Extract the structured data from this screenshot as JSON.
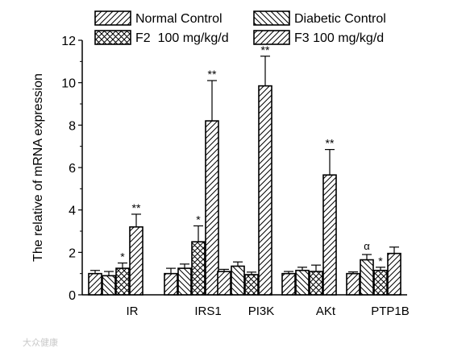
{
  "chart_data": {
    "type": "bar",
    "ylabel": "The relative of mRNA expression",
    "ylim": [
      0,
      12
    ],
    "yticks": [
      0,
      2,
      4,
      6,
      8,
      10,
      12
    ],
    "categories": [
      "IR",
      "IRS1",
      "PI3K",
      "AKt",
      "PTP1B"
    ],
    "legend_position": "top",
    "series": [
      {
        "name": "Normal Control",
        "pattern": "forward-hatch",
        "values": [
          1.0,
          1.0,
          1.1,
          1.0,
          1.0
        ],
        "errors": [
          0.15,
          0.25,
          0.1,
          0.1,
          0.08
        ],
        "annotations": [
          "",
          "",
          "",
          "",
          ""
        ]
      },
      {
        "name": "Diabetic Control",
        "pattern": "back-hatch",
        "values": [
          0.9,
          1.25,
          1.35,
          1.15,
          1.65
        ],
        "errors": [
          0.2,
          0.2,
          0.2,
          0.15,
          0.25
        ],
        "annotations": [
          "",
          "",
          "",
          "",
          "α"
        ]
      },
      {
        "name": "F2  100 mg/kg/d",
        "pattern": "cross-hatch",
        "values": [
          1.25,
          2.5,
          0.95,
          1.1,
          1.15
        ],
        "errors": [
          0.25,
          0.75,
          0.12,
          0.3,
          0.15
        ],
        "annotations": [
          "*",
          "*",
          "",
          "",
          "*"
        ]
      },
      {
        "name": "F3 100 mg/kg/d",
        "pattern": "forward-hatch",
        "values": [
          3.2,
          8.2,
          9.85,
          5.65,
          1.95
        ],
        "errors": [
          0.6,
          1.9,
          1.4,
          1.2,
          0.3
        ],
        "annotations": [
          "**",
          "**",
          "**",
          "**",
          ""
        ]
      }
    ],
    "colors": {
      "bar_fill": "#ffffff",
      "stroke": "#000000"
    }
  },
  "watermark": {
    "text": "大众健康"
  }
}
